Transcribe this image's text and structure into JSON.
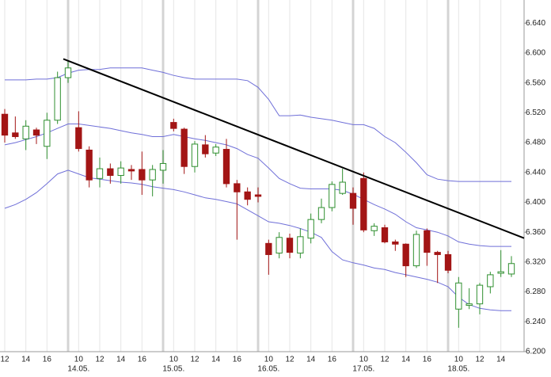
{
  "chart_data": {
    "type": "candlestick",
    "x": [
      0,
      1,
      2,
      3,
      4,
      5,
      6,
      7,
      8,
      9,
      10,
      11,
      12,
      13,
      14,
      15,
      16,
      17,
      18,
      19,
      20,
      21,
      22,
      23,
      24,
      25,
      26,
      27,
      28,
      29,
      30,
      31,
      32,
      33,
      34,
      35,
      36,
      37,
      38,
      39,
      40,
      41,
      42,
      43,
      44,
      45,
      46,
      47,
      48
    ],
    "open": [
      6.518,
      6.493,
      6.485,
      6.497,
      6.475,
      6.51,
      6.567,
      6.5,
      6.47,
      6.432,
      6.445,
      6.436,
      6.444,
      6.444,
      6.43,
      6.443,
      6.507,
      6.498,
      6.448,
      6.477,
      6.466,
      6.471,
      6.425,
      6.414,
      6.41,
      6.345,
      6.332,
      6.352,
      6.332,
      6.352,
      6.377,
      6.393,
      6.412,
      6.412,
      6.432,
      6.362,
      6.366,
      6.347,
      6.344,
      6.315,
      6.362,
      6.333,
      6.33,
      6.257,
      6.262,
      6.264,
      6.287,
      6.305,
      6.304
    ],
    "high": [
      6.525,
      6.515,
      6.51,
      6.5,
      6.52,
      6.575,
      6.59,
      6.522,
      6.475,
      6.46,
      6.452,
      6.455,
      6.45,
      6.468,
      6.45,
      6.47,
      6.512,
      6.5,
      6.482,
      6.49,
      6.478,
      6.485,
      6.43,
      6.42,
      6.42,
      6.35,
      6.36,
      6.358,
      6.365,
      6.385,
      6.405,
      6.428,
      6.445,
      6.42,
      6.44,
      6.372,
      6.37,
      6.35,
      6.345,
      6.362,
      6.365,
      6.335,
      6.335,
      6.3,
      6.285,
      6.292,
      6.307,
      6.336,
      6.328
    ],
    "low": [
      6.48,
      6.485,
      6.47,
      6.478,
      6.458,
      6.505,
      6.56,
      6.468,
      6.42,
      6.42,
      6.425,
      6.425,
      6.43,
      6.41,
      6.408,
      6.425,
      6.495,
      6.438,
      6.44,
      6.46,
      6.462,
      6.42,
      6.35,
      6.396,
      6.4,
      6.303,
      6.325,
      6.325,
      6.325,
      6.345,
      6.372,
      6.388,
      6.41,
      6.37,
      6.36,
      6.355,
      6.345,
      6.335,
      6.3,
      6.312,
      6.315,
      6.292,
      6.305,
      6.232,
      6.257,
      6.25,
      6.278,
      6.3,
      6.3
    ],
    "close": [
      6.49,
      6.488,
      6.502,
      6.49,
      6.51,
      6.567,
      6.58,
      6.472,
      6.43,
      6.445,
      6.436,
      6.446,
      6.442,
      6.43,
      6.444,
      6.452,
      6.499,
      6.448,
      6.478,
      6.465,
      6.474,
      6.425,
      6.414,
      6.404,
      6.408,
      6.33,
      6.353,
      6.333,
      6.354,
      6.377,
      6.393,
      6.424,
      6.427,
      6.392,
      6.363,
      6.368,
      6.347,
      6.344,
      6.315,
      6.357,
      6.333,
      6.33,
      6.309,
      6.292,
      6.264,
      6.289,
      6.303,
      6.307,
      6.318
    ],
    "up_color": "#2f8f2f",
    "down_color": "#a31515",
    "bands": [
      {
        "color": "#6f6fd8",
        "values": [
          6.564,
          6.564,
          6.564,
          6.565,
          6.565,
          6.567,
          6.573,
          6.577,
          6.578,
          6.578,
          6.58,
          6.58,
          6.58,
          6.58,
          6.577,
          6.574,
          6.57,
          6.567,
          6.565,
          6.565,
          6.565,
          6.565,
          6.565,
          6.563,
          6.554,
          6.538,
          6.516,
          6.516,
          6.517,
          6.514,
          6.512,
          6.51,
          6.507,
          6.504,
          6.504,
          6.499,
          6.488,
          6.48,
          6.467,
          6.453,
          6.437,
          6.431,
          6.429,
          6.428,
          6.428,
          6.428,
          6.428,
          6.428,
          6.428
        ]
      },
      {
        "color": "#6f6fd8",
        "values": [
          6.477,
          6.48,
          6.484,
          6.488,
          6.493,
          6.499,
          6.505,
          6.505,
          6.503,
          6.501,
          6.499,
          6.496,
          6.493,
          6.491,
          6.488,
          6.488,
          6.491,
          6.488,
          6.485,
          6.483,
          6.48,
          6.477,
          6.472,
          6.464,
          6.459,
          6.446,
          6.432,
          6.425,
          6.419,
          6.418,
          6.418,
          6.418,
          6.416,
          6.411,
          6.404,
          6.397,
          6.391,
          6.384,
          6.374,
          6.366,
          6.363,
          6.36,
          6.355,
          6.347,
          6.344,
          6.342,
          6.341,
          6.341,
          6.341
        ]
      },
      {
        "color": "#6f6fd8",
        "values": [
          6.392,
          6.397,
          6.404,
          6.413,
          6.425,
          6.438,
          6.443,
          6.438,
          6.433,
          6.431,
          6.429,
          6.427,
          6.426,
          6.424,
          6.421,
          6.419,
          6.417,
          6.414,
          6.41,
          6.406,
          6.404,
          6.401,
          6.398,
          6.39,
          6.382,
          6.374,
          6.372,
          6.369,
          6.365,
          6.36,
          6.353,
          6.334,
          6.323,
          6.319,
          6.316,
          6.312,
          6.31,
          6.306,
          6.303,
          6.3,
          6.297,
          6.293,
          6.287,
          6.273,
          6.263,
          6.258,
          6.256,
          6.255,
          6.255
        ]
      }
    ],
    "trendline": {
      "color": "#000000",
      "x": [
        5.55,
        49.2
      ],
      "y": [
        6.592,
        6.352
      ]
    },
    "xlim": [
      -0.45,
      49.2
    ],
    "ylim": [
      6.2,
      6.671
    ],
    "yticks": [
      {
        "value": 6.2,
        "label": "6.200"
      },
      {
        "value": 6.24,
        "label": "6.240"
      },
      {
        "value": 6.28,
        "label": "6.280"
      },
      {
        "value": 6.32,
        "label": "6.320"
      },
      {
        "value": 6.36,
        "label": "6.360"
      },
      {
        "value": 6.4,
        "label": "6.400"
      },
      {
        "value": 6.44,
        "label": "6.440"
      },
      {
        "value": 6.48,
        "label": "6.480"
      },
      {
        "value": 6.52,
        "label": "6.520"
      },
      {
        "value": 6.56,
        "label": "6.560"
      },
      {
        "value": 6.6,
        "label": "6.600"
      },
      {
        "value": 6.64,
        "label": "6.640"
      }
    ],
    "xticks": [
      {
        "value": 0,
        "label": "12"
      },
      {
        "value": 2,
        "label": "14"
      },
      {
        "value": 4,
        "label": "16"
      },
      {
        "value": 7,
        "label": "10"
      },
      {
        "value": 9,
        "label": "12"
      },
      {
        "value": 11,
        "label": "14"
      },
      {
        "value": 13,
        "label": "16"
      },
      {
        "value": 16,
        "label": "10"
      },
      {
        "value": 18,
        "label": "12"
      },
      {
        "value": 20,
        "label": "14"
      },
      {
        "value": 22,
        "label": "16"
      },
      {
        "value": 25,
        "label": "10"
      },
      {
        "value": 27,
        "label": "12"
      },
      {
        "value": 29,
        "label": "14"
      },
      {
        "value": 31,
        "label": "16"
      },
      {
        "value": 34,
        "label": "10"
      },
      {
        "value": 36,
        "label": "12"
      },
      {
        "value": 38,
        "label": "14"
      },
      {
        "value": 40,
        "label": "16"
      },
      {
        "value": 43,
        "label": "10"
      },
      {
        "value": 45,
        "label": "12"
      },
      {
        "value": 47,
        "label": "14"
      }
    ],
    "day_labels": [
      {
        "value": 7,
        "label": "14.05."
      },
      {
        "value": 16,
        "label": "15.05."
      },
      {
        "value": 25,
        "label": "16.05."
      },
      {
        "value": 34,
        "label": "17.05."
      },
      {
        "value": 43,
        "label": "18.05."
      }
    ],
    "day_separators": [
      6,
      15,
      24,
      33,
      42
    ],
    "grid": true
  }
}
